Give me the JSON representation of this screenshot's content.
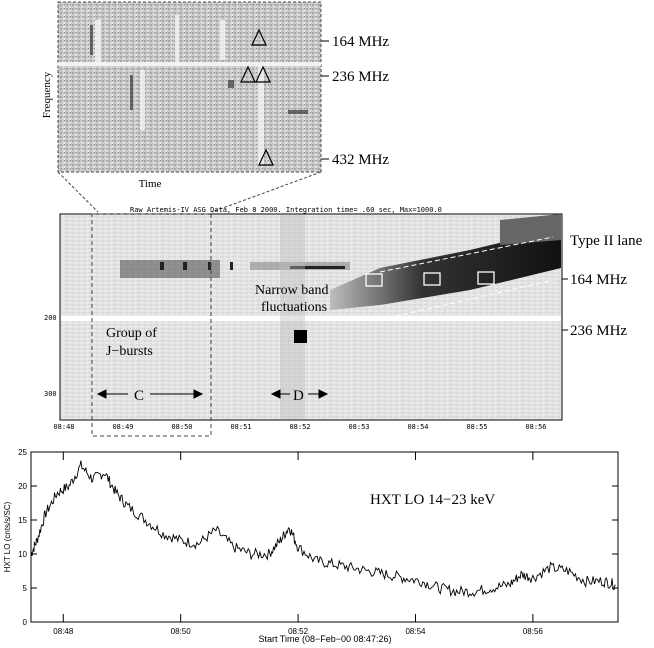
{
  "inset": {
    "ylabel": "Frequency",
    "xlabel": "Time",
    "freq_labels": [
      "164 MHz",
      "236 MHz",
      "432 MHz"
    ]
  },
  "spectrogram": {
    "header": "Raw  Artemis-IV  ASG Data, Feb  8 2000. Integration time=  .60 sec, Max=1000.0",
    "yticks": [
      "200",
      "300"
    ],
    "xticks": [
      "08:48",
      "08:49",
      "08:50",
      "08:51",
      "08:52",
      "08:53",
      "08:54",
      "08:55",
      "08:56"
    ],
    "annotations": {
      "type2": "Type II lane",
      "f164": "164 MHz",
      "f236": "236 MHz",
      "narrow1": "Narrow band",
      "narrow2": "fluctuations",
      "group1": "Group of",
      "group2": "J−bursts",
      "C": "C",
      "D": "D"
    }
  },
  "chart_data": {
    "type": "line",
    "title": "HXT LO 14−23 keV",
    "xlabel": "Start Time (08−Feb−00 08:47:26)",
    "ylabel": "HXT LO (cnts/s/SC)",
    "ylim": [
      0,
      25
    ],
    "yticks": [
      0,
      5,
      10,
      15,
      20,
      25
    ],
    "xticks": [
      "08:48",
      "08:50",
      "08:52",
      "08:54",
      "08:56"
    ],
    "x_minutes_since_0847": [
      0.45,
      0.55,
      0.7,
      0.9,
      1.1,
      1.3,
      1.5,
      1.7,
      1.9,
      2.1,
      2.4,
      2.7,
      3.0,
      3.3,
      3.6,
      3.9,
      4.2,
      4.5,
      4.7,
      4.85,
      5.0,
      5.3,
      5.6,
      5.9,
      6.2,
      6.5,
      6.8,
      7.1,
      7.4,
      7.7,
      8.0,
      8.3,
      8.6,
      8.8,
      9.0,
      9.3,
      9.6,
      9.9,
      10.2,
      10.4
    ],
    "values": [
      10,
      12,
      16,
      19,
      20,
      23,
      21,
      22,
      19,
      17,
      15,
      13,
      12,
      11.5,
      13.5,
      11,
      10,
      10,
      12,
      14,
      11,
      9,
      8.5,
      8,
      7.5,
      7,
      6.5,
      6,
      5,
      4.5,
      4.5,
      5,
      5.5,
      7,
      6.5,
      8,
      7.5,
      6,
      6,
      5.5
    ]
  }
}
